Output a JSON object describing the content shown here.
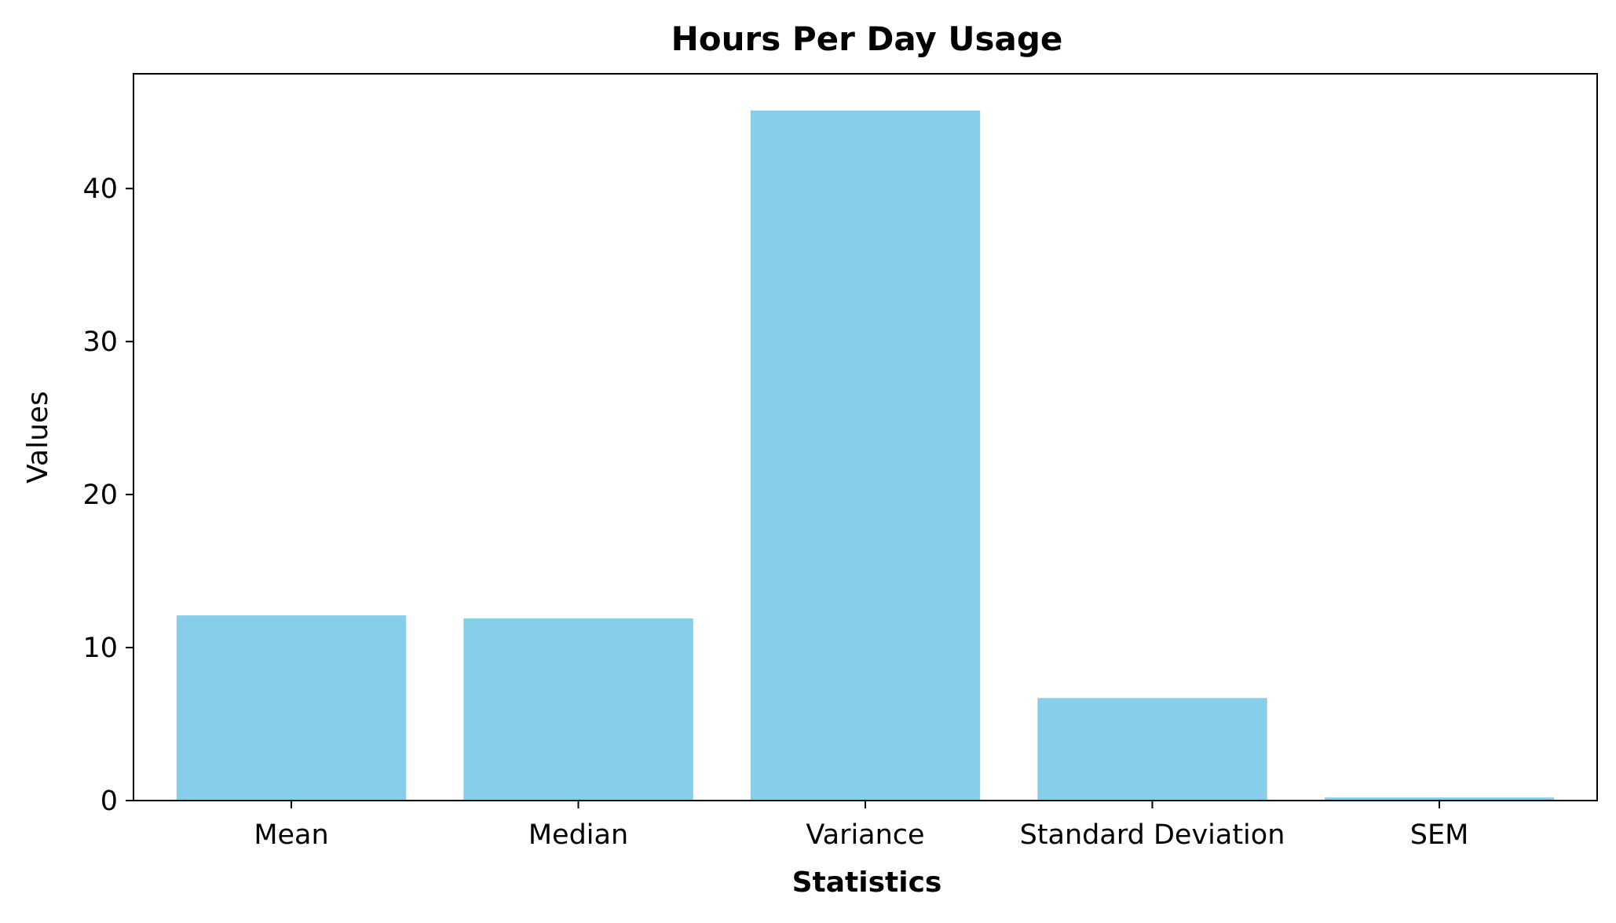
{
  "chart_data": {
    "type": "bar",
    "title": "Hours Per Day Usage",
    "xlabel": "Statistics",
    "ylabel": "Values",
    "categories": [
      "Mean",
      "Median",
      "Variance",
      "Standard Deviation",
      "SEM"
    ],
    "values": [
      12.1,
      11.9,
      45.1,
      6.7,
      0.2
    ],
    "ylim": [
      0,
      47.5
    ],
    "yticks": [
      "0",
      "10",
      "20",
      "30",
      "40"
    ],
    "grid": false,
    "legend": "none",
    "bar_color": "#87CEEB"
  }
}
